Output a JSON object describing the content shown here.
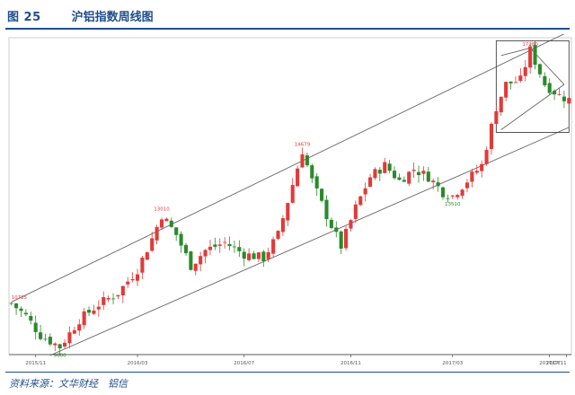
{
  "header": {
    "figure_number": "图 25",
    "title": "沪铝指数周线图"
  },
  "footer": {
    "source": "资料来源：文华财经　铝信"
  },
  "chart_data": {
    "type": "candlestick",
    "title": "沪铝指数周线图",
    "x_ticks": [
      "2015/11",
      "2016/03",
      "2016/07",
      "2016/11",
      "2017/03",
      "2017/07",
      "2017/11"
    ],
    "ylim": [
      9400,
      17600
    ],
    "anchors": [
      {
        "w": 0,
        "p": 10725
      },
      {
        "w": 3,
        "p": 10400
      },
      {
        "w": 6,
        "p": 9900
      },
      {
        "w": 10,
        "p": 9600
      },
      {
        "w": 14,
        "p": 10300
      },
      {
        "w": 18,
        "p": 10700
      },
      {
        "w": 22,
        "p": 11000
      },
      {
        "w": 26,
        "p": 11600
      },
      {
        "w": 29,
        "p": 12400
      },
      {
        "w": 31,
        "p": 13010
      },
      {
        "w": 34,
        "p": 12500
      },
      {
        "w": 37,
        "p": 11700
      },
      {
        "w": 40,
        "p": 12100
      },
      {
        "w": 44,
        "p": 12300
      },
      {
        "w": 48,
        "p": 12000
      },
      {
        "w": 52,
        "p": 11900
      },
      {
        "w": 55,
        "p": 12500
      },
      {
        "w": 58,
        "p": 13800
      },
      {
        "w": 60,
        "p": 14679
      },
      {
        "w": 62,
        "p": 13900
      },
      {
        "w": 65,
        "p": 13000
      },
      {
        "w": 68,
        "p": 12200
      },
      {
        "w": 71,
        "p": 13200
      },
      {
        "w": 74,
        "p": 14000
      },
      {
        "w": 77,
        "p": 14300
      },
      {
        "w": 80,
        "p": 13900
      },
      {
        "w": 83,
        "p": 14200
      },
      {
        "w": 86,
        "p": 14000
      },
      {
        "w": 89,
        "p": 13600
      },
      {
        "w": 91,
        "p": 13510
      },
      {
        "w": 94,
        "p": 13900
      },
      {
        "w": 97,
        "p": 14300
      },
      {
        "w": 100,
        "p": 15800
      },
      {
        "w": 102,
        "p": 16400
      },
      {
        "w": 105,
        "p": 16500
      },
      {
        "w": 107,
        "p": 17280
      },
      {
        "w": 110,
        "p": 16400
      },
      {
        "w": 113,
        "p": 16100
      },
      {
        "w": 115,
        "p": 16000
      }
    ],
    "labels": [
      {
        "text": "10725",
        "w": 0,
        "p": 10725,
        "color": "#e03a3a"
      },
      {
        "text": "9600",
        "w": 10,
        "p": 9600,
        "color": "#2a8a2a"
      },
      {
        "text": "13010",
        "w": 31,
        "p": 13010,
        "color": "#e03a3a"
      },
      {
        "text": "14679",
        "w": 60,
        "p": 14679,
        "color": "#e03a3a"
      },
      {
        "text": "13510",
        "w": 91,
        "p": 13510,
        "color": "#2a8a2a"
      },
      {
        "text": "17280",
        "w": 107,
        "p": 17280,
        "color": "#e03a3a"
      }
    ],
    "channel_upper": [
      {
        "w": 0,
        "p": 10760
      },
      {
        "w": 115,
        "p": 17760
      }
    ],
    "channel_lower": [
      {
        "w": 8,
        "p": 9380
      },
      {
        "w": 115,
        "p": 15280
      }
    ],
    "triangle": [
      {
        "w": 101,
        "p": 17140
      },
      {
        "w": 107,
        "p": 17330
      },
      {
        "w": 114,
        "p": 16390
      },
      {
        "w": 101,
        "p": 15220
      }
    ],
    "zoom_box": {
      "w_range": [
        100,
        115
      ],
      "p_range": [
        15150,
        17520
      ]
    },
    "colors": {
      "up": "#e03a3a",
      "down": "#2a8a2a",
      "lines": "#666666",
      "axis": "#333333",
      "tick": "#555555"
    }
  }
}
